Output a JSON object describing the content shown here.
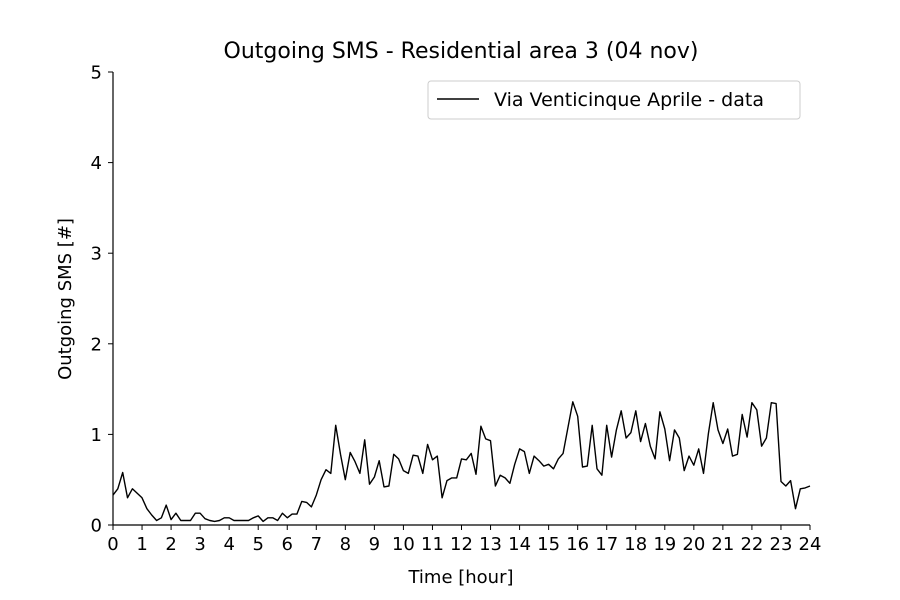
{
  "chart_data": {
    "type": "line",
    "title": "Outgoing SMS - Residential area 3 (04 nov)",
    "xlabel": "Time [hour]",
    "ylabel": "Outgoing SMS [#]",
    "xlim": [
      0,
      24
    ],
    "ylim": [
      0,
      5
    ],
    "xticks": [
      "0",
      "1",
      "2",
      "3",
      "4",
      "5",
      "6",
      "7",
      "8",
      "9",
      "10",
      "11",
      "12",
      "13",
      "14",
      "15",
      "16",
      "17",
      "18",
      "19",
      "20",
      "21",
      "22",
      "23",
      "24"
    ],
    "yticks": [
      "0",
      "1",
      "2",
      "3",
      "4",
      "5"
    ],
    "grid": false,
    "legend_position": "top-right",
    "line_color": "#000000",
    "series": [
      {
        "name": "Via Venticinque Aprile - data",
        "x": [
          0,
          0.167,
          0.333,
          0.5,
          0.667,
          0.833,
          1,
          1.167,
          1.333,
          1.5,
          1.667,
          1.833,
          2,
          2.167,
          2.333,
          2.5,
          2.667,
          2.833,
          3,
          3.167,
          3.333,
          3.5,
          3.667,
          3.833,
          4,
          4.167,
          4.333,
          4.5,
          4.667,
          4.833,
          5,
          5.167,
          5.333,
          5.5,
          5.667,
          5.833,
          6,
          6.167,
          6.333,
          6.5,
          6.667,
          6.833,
          7,
          7.167,
          7.333,
          7.5,
          7.667,
          7.833,
          8,
          8.167,
          8.333,
          8.5,
          8.667,
          8.833,
          9,
          9.167,
          9.333,
          9.5,
          9.667,
          9.833,
          10,
          10.167,
          10.333,
          10.5,
          10.667,
          10.833,
          11,
          11.167,
          11.333,
          11.5,
          11.667,
          11.833,
          12,
          12.167,
          12.333,
          12.5,
          12.667,
          12.833,
          13,
          13.167,
          13.333,
          13.5,
          13.667,
          13.833,
          14,
          14.167,
          14.333,
          14.5,
          14.667,
          14.833,
          15,
          15.167,
          15.333,
          15.5,
          15.667,
          15.833,
          16,
          16.167,
          16.333,
          16.5,
          16.667,
          16.833,
          17,
          17.167,
          17.333,
          17.5,
          17.667,
          17.833,
          18,
          18.167,
          18.333,
          18.5,
          18.667,
          18.833,
          19,
          19.167,
          19.333,
          19.5,
          19.667,
          19.833,
          20,
          20.167,
          20.333,
          20.5,
          20.667,
          20.833,
          21,
          21.167,
          21.333,
          21.5,
          21.667,
          21.833,
          22,
          22.167,
          22.333,
          22.5,
          22.667,
          22.833,
          23,
          23.167,
          23.333,
          23.5,
          23.667,
          23.833,
          24
        ],
        "y": [
          0.33,
          0.4,
          0.58,
          0.3,
          0.4,
          0.35,
          0.3,
          0.18,
          0.11,
          0.05,
          0.08,
          0.22,
          0.06,
          0.13,
          0.05,
          0.05,
          0.05,
          0.13,
          0.13,
          0.07,
          0.05,
          0.04,
          0.05,
          0.08,
          0.08,
          0.05,
          0.05,
          0.05,
          0.05,
          0.08,
          0.1,
          0.04,
          0.08,
          0.08,
          0.05,
          0.13,
          0.08,
          0.12,
          0.12,
          0.26,
          0.25,
          0.2,
          0.33,
          0.5,
          0.61,
          0.57,
          1.1,
          0.78,
          0.5,
          0.8,
          0.7,
          0.57,
          0.94,
          0.45,
          0.53,
          0.71,
          0.42,
          0.43,
          0.78,
          0.73,
          0.6,
          0.57,
          0.77,
          0.76,
          0.57,
          0.89,
          0.72,
          0.76,
          0.3,
          0.49,
          0.52,
          0.52,
          0.73,
          0.72,
          0.79,
          0.56,
          1.09,
          0.95,
          0.93,
          0.43,
          0.55,
          0.52,
          0.46,
          0.67,
          0.84,
          0.81,
          0.57,
          0.76,
          0.71,
          0.65,
          0.67,
          0.62,
          0.73,
          0.79,
          1.08,
          1.36,
          1.2,
          0.64,
          0.65,
          1.1,
          0.62,
          0.55,
          1.1,
          0.75,
          1.05,
          1.26,
          0.96,
          1.02,
          1.26,
          0.92,
          1.12,
          0.87,
          0.73,
          1.25,
          1.06,
          0.71,
          1.05,
          0.96,
          0.6,
          0.76,
          0.66,
          0.84,
          0.57,
          1.01,
          1.35,
          1.05,
          0.9,
          1.06,
          0.76,
          0.78,
          1.22,
          0.97,
          1.35,
          1.27,
          0.87,
          0.96,
          1.35,
          1.34,
          0.48,
          0.43,
          0.49,
          0.18,
          0.4,
          0.41,
          0.43
        ]
      }
    ]
  }
}
